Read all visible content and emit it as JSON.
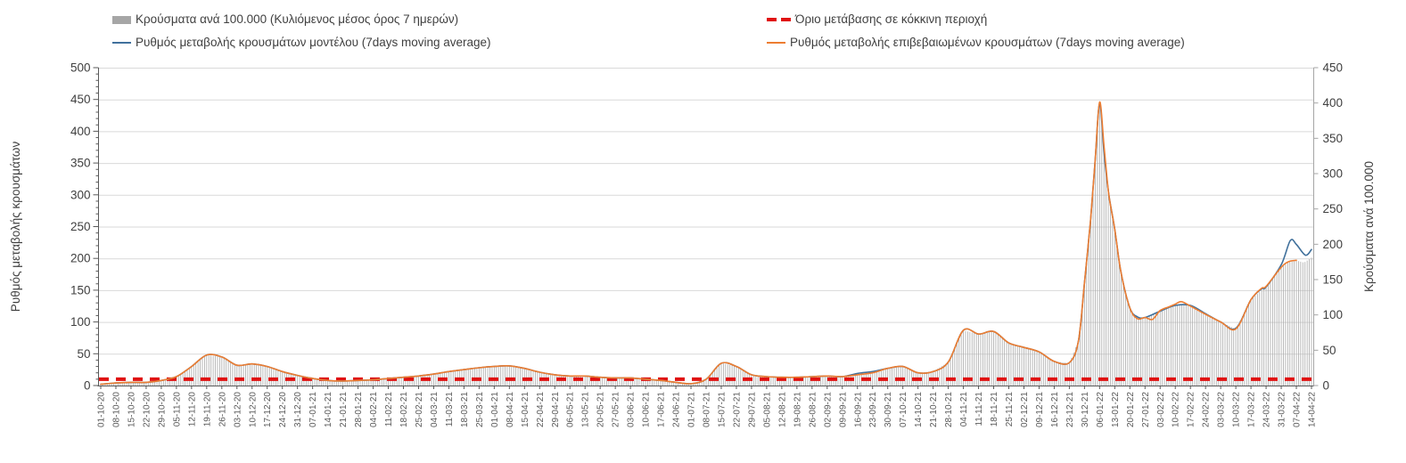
{
  "legend": [
    {
      "label": "Κρούσματα ανά 100.000 (Κυλιόμενος μέσος όρος 7 ημερών)",
      "type": "bar",
      "color": "#a6a6a6"
    },
    {
      "label": "Όριο μετάβασης σε κόκκινη περιοχή",
      "type": "dash",
      "color": "#e01010"
    },
    {
      "label": "Ρυθμός μεταβολής κρουσμάτων μοντέλου (7days moving average)",
      "type": "line",
      "color": "#41719c"
    },
    {
      "label": "Ρυθμός μεταβολής επιβεβαιωμένων κρουσμάτων (7days moving average)",
      "type": "line",
      "color": "#ed7d31"
    }
  ],
  "chart_data": {
    "type": "combo-bar-line",
    "title": "",
    "left_axis": {
      "label": "Ρυθμός μεταβολής κρουσμάτων",
      "min": 0,
      "max": 500,
      "step": 50
    },
    "right_axis": {
      "label": "Κρούσματα ανά 100.000",
      "min": 0,
      "max": 450,
      "step": 50
    },
    "grid": true,
    "legend_position": "top",
    "categories": [
      "01-10-20",
      "08-10-20",
      "15-10-20",
      "22-10-20",
      "29-10-20",
      "05-11-20",
      "12-11-20",
      "19-11-20",
      "26-11-20",
      "03-12-20",
      "10-12-20",
      "17-12-20",
      "24-12-20",
      "31-12-20",
      "07-01-21",
      "14-01-21",
      "21-01-21",
      "28-01-21",
      "04-02-21",
      "11-02-21",
      "18-02-21",
      "25-02-21",
      "04-03-21",
      "11-03-21",
      "18-03-21",
      "25-03-21",
      "01-04-21",
      "08-04-21",
      "15-04-21",
      "22-04-21",
      "29-04-21",
      "06-05-21",
      "13-05-21",
      "20-05-21",
      "27-05-21",
      "03-06-21",
      "10-06-21",
      "17-06-21",
      "24-06-21",
      "01-07-21",
      "08-07-21",
      "15-07-21",
      "22-07-21",
      "29-07-21",
      "05-08-21",
      "12-08-21",
      "19-08-21",
      "26-08-21",
      "02-09-21",
      "09-09-21",
      "16-09-21",
      "23-09-21",
      "30-09-21",
      "07-10-21",
      "14-10-21",
      "21-10-21",
      "28-10-21",
      "04-11-21",
      "11-11-21",
      "18-11-21",
      "25-11-21",
      "02-12-21",
      "09-12-21",
      "16-12-21",
      "23-12-21",
      "30-12-21",
      "06-01-22",
      "13-01-22",
      "20-01-22",
      "27-01-22",
      "03-02-22",
      "10-02-22",
      "17-02-22",
      "24-02-22",
      "03-03-22",
      "10-03-22",
      "17-03-22",
      "24-03-22",
      "31-03-22",
      "07-04-22",
      "14-04-22"
    ],
    "threshold": {
      "name": "Όριο μετάβασης σε κόκκινη περιοχή",
      "axis": "left",
      "value": 10,
      "color": "#e01010"
    },
    "series": [
      {
        "name": "Κρούσματα ανά 100.000 (Κυλιόμενος μέσος όρος 7 ημερών)",
        "type": "bar",
        "axis": "right",
        "color": "#aaaaaa",
        "points": [
          [
            0,
            2
          ],
          [
            1,
            4
          ],
          [
            2,
            5
          ],
          [
            3,
            5
          ],
          [
            4,
            7
          ],
          [
            5,
            13
          ],
          [
            6,
            27
          ],
          [
            7,
            43
          ],
          [
            8,
            41
          ],
          [
            9,
            29
          ],
          [
            10,
            31
          ],
          [
            11,
            27
          ],
          [
            12,
            20
          ],
          [
            13,
            14
          ],
          [
            14,
            10
          ],
          [
            15,
            7
          ],
          [
            16,
            6
          ],
          [
            17,
            7
          ],
          [
            18,
            8
          ],
          [
            19,
            10
          ],
          [
            20,
            12
          ],
          [
            21,
            14
          ],
          [
            22,
            16
          ],
          [
            23,
            20
          ],
          [
            24,
            23
          ],
          [
            25,
            25
          ],
          [
            26,
            27
          ],
          [
            27,
            28
          ],
          [
            28,
            24
          ],
          [
            29,
            19
          ],
          [
            30,
            15
          ],
          [
            31,
            14
          ],
          [
            32,
            14
          ],
          [
            33,
            12
          ],
          [
            34,
            11
          ],
          [
            35,
            11
          ],
          [
            36,
            9
          ],
          [
            37,
            7
          ],
          [
            38,
            5
          ],
          [
            39,
            3
          ],
          [
            40,
            9
          ],
          [
            41,
            32
          ],
          [
            42,
            27
          ],
          [
            43,
            15
          ],
          [
            44,
            13
          ],
          [
            45,
            12
          ],
          [
            46,
            12
          ],
          [
            47,
            13
          ],
          [
            48,
            14
          ],
          [
            49,
            13
          ],
          [
            50,
            15
          ],
          [
            51,
            18
          ],
          [
            52,
            24
          ],
          [
            53,
            27
          ],
          [
            54,
            18
          ],
          [
            55,
            20
          ],
          [
            56,
            33
          ],
          [
            57,
            78
          ],
          [
            58,
            73
          ],
          [
            59,
            77
          ],
          [
            60,
            60
          ],
          [
            61,
            54
          ],
          [
            62,
            48
          ],
          [
            63,
            34
          ],
          [
            64,
            32
          ],
          [
            64.6,
            63
          ],
          [
            65,
            146
          ],
          [
            65.4,
            234
          ],
          [
            65.7,
            318
          ],
          [
            66,
            401
          ],
          [
            66.3,
            338
          ],
          [
            66.6,
            272
          ],
          [
            67,
            221
          ],
          [
            67.4,
            162
          ],
          [
            68,
            110
          ],
          [
            68.5,
            95
          ],
          [
            69,
            96
          ],
          [
            70,
            106
          ],
          [
            71,
            115
          ],
          [
            72,
            113
          ],
          [
            73,
            101
          ],
          [
            74,
            90
          ],
          [
            75,
            80
          ],
          [
            76,
            122
          ],
          [
            77,
            140
          ],
          [
            78,
            167
          ],
          [
            78.5,
            176
          ],
          [
            79,
            177
          ],
          [
            79.5,
            174
          ],
          [
            80,
            181
          ]
        ]
      },
      {
        "name": "Ρυθμός μεταβολής κρουσμάτων μοντέλου (7days moving average)",
        "type": "line",
        "axis": "left",
        "color": "#41719c",
        "points": [
          [
            0,
            2
          ],
          [
            1,
            4
          ],
          [
            2,
            5
          ],
          [
            3,
            5
          ],
          [
            4,
            8
          ],
          [
            5,
            14
          ],
          [
            6,
            30
          ],
          [
            7,
            48
          ],
          [
            8,
            45
          ],
          [
            9,
            32
          ],
          [
            10,
            34
          ],
          [
            11,
            30
          ],
          [
            12,
            22
          ],
          [
            13,
            16
          ],
          [
            14,
            11
          ],
          [
            15,
            8
          ],
          [
            16,
            7
          ],
          [
            17,
            8
          ],
          [
            18,
            9
          ],
          [
            19,
            11
          ],
          [
            20,
            13
          ],
          [
            21,
            15
          ],
          [
            22,
            18
          ],
          [
            23,
            22
          ],
          [
            24,
            25
          ],
          [
            25,
            28
          ],
          [
            26,
            30
          ],
          [
            27,
            31
          ],
          [
            28,
            27
          ],
          [
            29,
            21
          ],
          [
            30,
            17
          ],
          [
            31,
            15
          ],
          [
            32,
            15
          ],
          [
            33,
            13
          ],
          [
            34,
            12
          ],
          [
            35,
            12
          ],
          [
            36,
            10
          ],
          [
            37,
            8
          ],
          [
            38,
            5
          ],
          [
            39,
            3
          ],
          [
            40,
            10
          ],
          [
            41,
            35
          ],
          [
            42,
            30
          ],
          [
            43,
            17
          ],
          [
            44,
            14
          ],
          [
            45,
            13
          ],
          [
            46,
            13
          ],
          [
            47,
            14
          ],
          [
            48,
            15
          ],
          [
            49,
            14
          ],
          [
            50,
            19
          ],
          [
            51,
            22
          ],
          [
            52,
            27
          ],
          [
            53,
            30
          ],
          [
            54,
            20
          ],
          [
            55,
            22
          ],
          [
            56,
            37
          ],
          [
            57,
            87
          ],
          [
            58,
            81
          ],
          [
            59,
            85
          ],
          [
            60,
            67
          ],
          [
            61,
            60
          ],
          [
            62,
            53
          ],
          [
            63,
            38
          ],
          [
            64,
            36
          ],
          [
            64.6,
            70
          ],
          [
            65,
            162
          ],
          [
            65.4,
            260
          ],
          [
            65.7,
            353
          ],
          [
            66,
            444
          ],
          [
            66.3,
            365
          ],
          [
            66.6,
            302
          ],
          [
            67,
            246
          ],
          [
            67.4,
            180
          ],
          [
            68,
            122
          ],
          [
            68.5,
            108
          ],
          [
            69,
            107
          ],
          [
            70,
            117
          ],
          [
            71,
            126
          ],
          [
            72,
            126
          ],
          [
            73,
            113
          ],
          [
            74,
            100
          ],
          [
            75,
            90
          ],
          [
            76,
            135
          ],
          [
            76.7,
            152
          ],
          [
            77,
            155
          ],
          [
            78,
            190
          ],
          [
            78.6,
            228
          ],
          [
            79,
            222
          ],
          [
            79.6,
            205
          ],
          [
            80,
            214
          ]
        ]
      },
      {
        "name": "Ρυθμός μεταβολής επιβεβαιωμένων κρουσμάτων (7days moving average)",
        "type": "line",
        "axis": "left",
        "color": "#ed7d31",
        "points": [
          [
            0,
            2
          ],
          [
            1,
            4
          ],
          [
            2,
            5
          ],
          [
            3,
            5
          ],
          [
            4,
            8
          ],
          [
            5,
            14
          ],
          [
            6,
            30
          ],
          [
            7,
            48
          ],
          [
            8,
            45
          ],
          [
            9,
            32
          ],
          [
            10,
            34
          ],
          [
            11,
            30
          ],
          [
            12,
            22
          ],
          [
            13,
            16
          ],
          [
            14,
            11
          ],
          [
            15,
            8
          ],
          [
            16,
            7
          ],
          [
            17,
            8
          ],
          [
            18,
            9
          ],
          [
            19,
            11
          ],
          [
            20,
            13
          ],
          [
            21,
            15
          ],
          [
            22,
            18
          ],
          [
            23,
            22
          ],
          [
            24,
            25
          ],
          [
            25,
            28
          ],
          [
            26,
            30
          ],
          [
            27,
            31
          ],
          [
            28,
            27
          ],
          [
            29,
            21
          ],
          [
            30,
            17
          ],
          [
            31,
            15
          ],
          [
            32,
            15
          ],
          [
            33,
            13
          ],
          [
            34,
            12
          ],
          [
            35,
            12
          ],
          [
            36,
            10
          ],
          [
            37,
            8
          ],
          [
            38,
            5
          ],
          [
            39,
            3
          ],
          [
            40,
            10
          ],
          [
            41,
            35
          ],
          [
            42,
            30
          ],
          [
            43,
            17
          ],
          [
            44,
            14
          ],
          [
            45,
            13
          ],
          [
            46,
            13
          ],
          [
            47,
            14
          ],
          [
            48,
            15
          ],
          [
            49,
            14
          ],
          [
            50,
            17
          ],
          [
            51,
            20
          ],
          [
            52,
            27
          ],
          [
            53,
            30
          ],
          [
            54,
            20
          ],
          [
            55,
            22
          ],
          [
            56,
            37
          ],
          [
            57,
            87
          ],
          [
            58,
            81
          ],
          [
            59,
            85
          ],
          [
            60,
            67
          ],
          [
            61,
            60
          ],
          [
            62,
            53
          ],
          [
            63,
            38
          ],
          [
            64,
            36
          ],
          [
            64.6,
            70
          ],
          [
            65,
            162
          ],
          [
            65.4,
            260
          ],
          [
            65.7,
            353
          ],
          [
            66,
            446
          ],
          [
            66.3,
            375
          ],
          [
            66.6,
            302
          ],
          [
            67,
            246
          ],
          [
            67.4,
            180
          ],
          [
            68,
            122
          ],
          [
            68.5,
            105
          ],
          [
            69,
            107
          ],
          [
            69.5,
            104
          ],
          [
            70,
            118
          ],
          [
            70.6,
            124
          ],
          [
            71,
            128
          ],
          [
            71.4,
            132
          ],
          [
            72,
            125
          ],
          [
            73,
            112
          ],
          [
            74,
            100
          ],
          [
            75,
            89
          ],
          [
            76,
            135
          ],
          [
            76.7,
            153
          ],
          [
            77,
            156
          ],
          [
            78,
            186
          ],
          [
            78.5,
            195
          ],
          [
            79,
            197
          ]
        ]
      }
    ]
  },
  "layout_note": "bars are daily values interpolated between weekly points; lines are 7-day moving averages"
}
